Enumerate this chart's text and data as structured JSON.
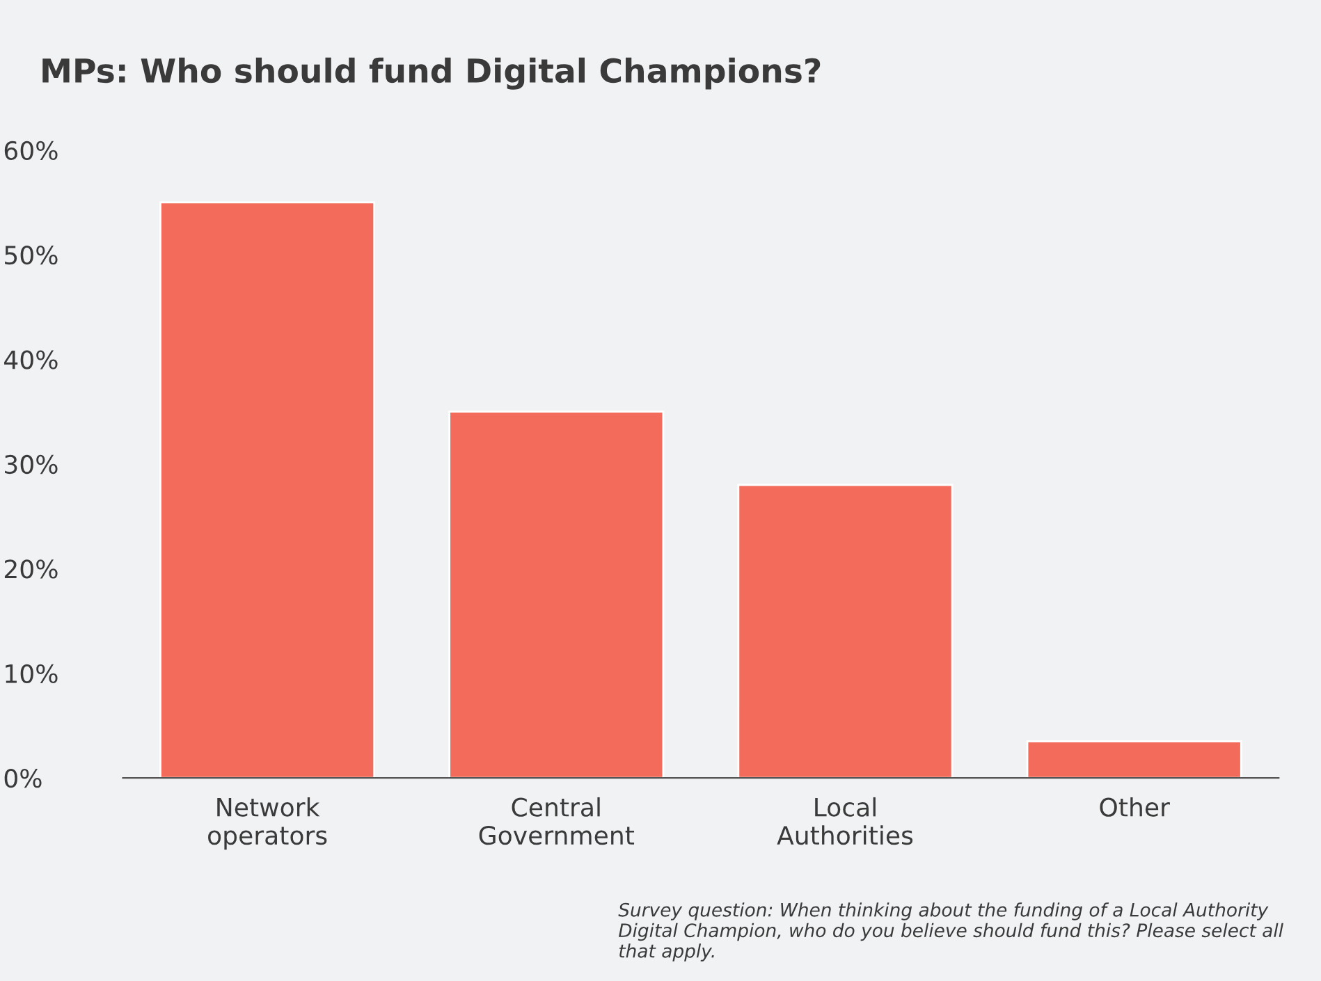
{
  "chart_data": {
    "type": "bar",
    "title": "MPs: Who should fund Digital Champions?",
    "categories": [
      "Network\noperators",
      "Central\nGovernment",
      "Local\nAuthorities",
      "Other"
    ],
    "values": [
      55,
      35,
      28,
      3.5
    ],
    "color": "#f26b5b",
    "ylim": [
      0,
      60
    ],
    "yticks": [
      {
        "value": 0,
        "label": "0%"
      },
      {
        "value": 10,
        "label": "10%"
      },
      {
        "value": 20,
        "label": "20%"
      },
      {
        "value": 30,
        "label": "30%"
      },
      {
        "value": 40,
        "label": "40%"
      },
      {
        "value": 50,
        "label": "50%"
      },
      {
        "value": 60,
        "label": "60%"
      }
    ],
    "grid": false,
    "annotations": [
      "Survey question: When thinking about the funding of a Local Authority Digital Champion, who do you believe should fund this? Please select all that apply."
    ]
  }
}
